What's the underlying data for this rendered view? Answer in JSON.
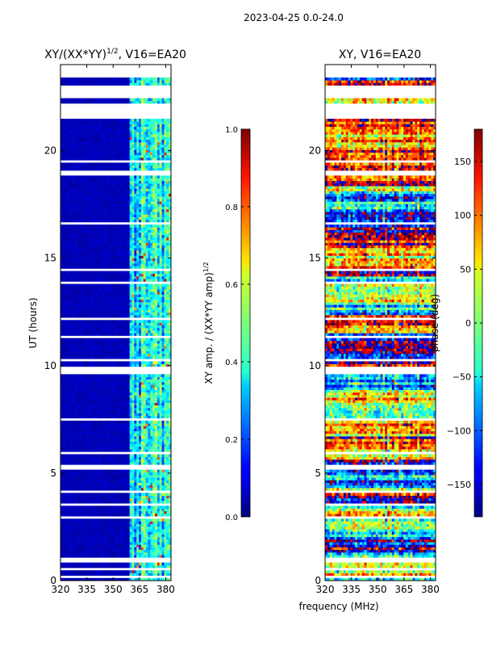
{
  "suptitle": "2023-04-25 0.0-24.0",
  "shared_xlabel": "frequency (MHz)",
  "chart_data": [
    {
      "type": "heatmap",
      "title": "XY/(XX*YY)",
      "title_sup": "1/2",
      "title_rest": ", V16=EA20",
      "ylabel": "UT (hours)",
      "xlim": [
        320,
        383
      ],
      "ylim": [
        0,
        24
      ],
      "xticks": [
        320,
        335,
        350,
        365,
        380
      ],
      "yticks": [
        0,
        5,
        10,
        15,
        20
      ],
      "band_edge_mhz": 360,
      "colorbar": {
        "label": "XY amp. / (XX*YY amp)",
        "label_sup": "1/2",
        "range": [
          0.0,
          1.0
        ],
        "ticks": [
          "0.0",
          "0.2",
          "0.4",
          "0.6",
          "0.8",
          "1.0"
        ],
        "tick_values": [
          0.0,
          0.2,
          0.4,
          0.6,
          0.8,
          1.0
        ]
      },
      "data_gaps_hours": [
        [
          0.1,
          0.2
        ],
        [
          0.45,
          0.55
        ],
        [
          0.85,
          1.05
        ],
        [
          2.9,
          3.05
        ],
        [
          3.5,
          3.55
        ],
        [
          4.1,
          4.2
        ],
        [
          5.2,
          5.35
        ],
        [
          5.9,
          6.0
        ],
        [
          7.5,
          7.6
        ],
        [
          9.55,
          9.9
        ],
        [
          10.25,
          10.35
        ],
        [
          11.3,
          11.4
        ],
        [
          12.1,
          12.25
        ],
        [
          12.7,
          12.75
        ],
        [
          13.8,
          13.9
        ],
        [
          14.4,
          14.5
        ],
        [
          16.6,
          16.7
        ],
        [
          17.6,
          17.7
        ],
        [
          18.3,
          18.4
        ],
        [
          18.9,
          19.1
        ],
        [
          19.5,
          19.6
        ],
        [
          21.5,
          22.2
        ],
        [
          22.5,
          23.1
        ],
        [
          23.4,
          24.0
        ]
      ]
    },
    {
      "type": "heatmap",
      "title": "XY, V16=EA20",
      "xlim": [
        320,
        383
      ],
      "ylim": [
        0,
        24
      ],
      "xticks": [
        320,
        335,
        350,
        365,
        380
      ],
      "yticks": [
        0,
        5,
        10,
        15,
        20
      ],
      "colorbar": {
        "label": "phase (deg)",
        "range": [
          -180,
          180
        ],
        "ticks": [
          "−150",
          "−100",
          "−50",
          "0",
          "50",
          "100",
          "150"
        ],
        "tick_values": [
          -150,
          -100,
          -50,
          0,
          50,
          100,
          150
        ]
      },
      "data_gaps_hours": [
        [
          0.1,
          0.2
        ],
        [
          0.45,
          0.55
        ],
        [
          0.85,
          1.05
        ],
        [
          2.9,
          3.05
        ],
        [
          3.5,
          3.55
        ],
        [
          4.1,
          4.2
        ],
        [
          5.2,
          5.35
        ],
        [
          5.9,
          6.0
        ],
        [
          7.5,
          7.6
        ],
        [
          9.55,
          9.9
        ],
        [
          10.25,
          10.35
        ],
        [
          11.3,
          11.4
        ],
        [
          12.1,
          12.25
        ],
        [
          12.7,
          12.75
        ],
        [
          13.8,
          13.9
        ],
        [
          14.4,
          14.5
        ],
        [
          16.6,
          16.7
        ],
        [
          17.6,
          17.7
        ],
        [
          18.3,
          18.4
        ],
        [
          18.9,
          19.1
        ],
        [
          19.5,
          19.6
        ],
        [
          21.5,
          22.2
        ],
        [
          22.5,
          23.1
        ],
        [
          23.4,
          24.0
        ]
      ]
    }
  ]
}
